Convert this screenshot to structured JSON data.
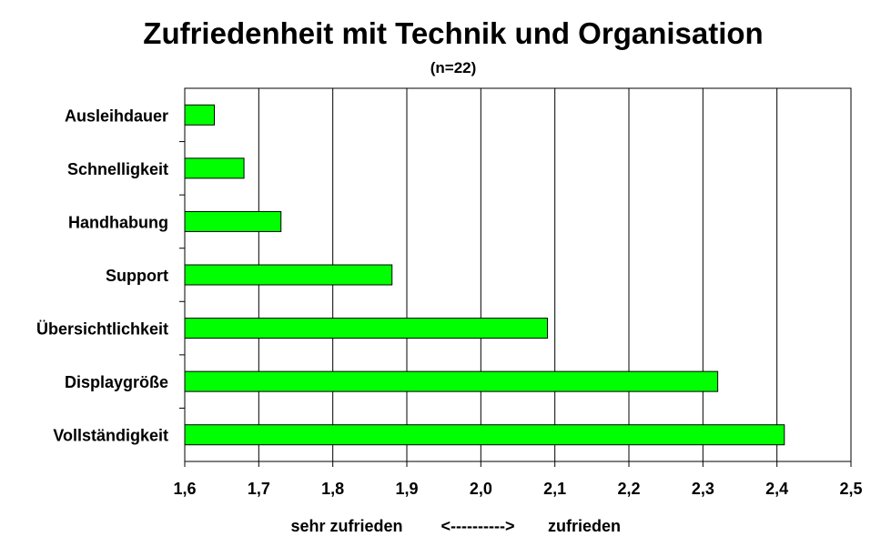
{
  "chart_data": {
    "type": "bar",
    "orientation": "horizontal",
    "title": "Zufriedenheit mit Technik und Organisation",
    "subtitle": "(n=22)",
    "categories": [
      "Ausleihdauer",
      "Schnelligkeit",
      "Handhabung",
      "Support",
      "Übersichtlichkeit",
      "Displaygröße",
      "Vollständigkeit"
    ],
    "values": [
      1.64,
      1.68,
      1.73,
      1.88,
      2.09,
      2.32,
      2.41
    ],
    "xlim": [
      1.6,
      2.5
    ],
    "xticks": [
      "1,6",
      "1,7",
      "1,8",
      "1,9",
      "2,0",
      "2,1",
      "2,2",
      "2,3",
      "2,4",
      "2,5"
    ],
    "xlabel": {
      "left": "sehr zufrieden",
      "middle": "<---------->",
      "right": "zufrieden"
    },
    "grid": "vertical",
    "bar_color": "#00ff00",
    "legend": "none"
  }
}
